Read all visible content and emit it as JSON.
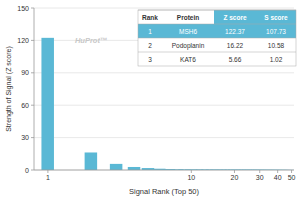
{
  "chart_data": {
    "type": "bar",
    "xlabel": "Signal Rank (Top 50)",
    "ylabel": "Strength of Signal (Z score)",
    "x": [
      1,
      2,
      3,
      4,
      5,
      6,
      7,
      8,
      9,
      10,
      11,
      12,
      13,
      14,
      15,
      16,
      17,
      18,
      19,
      20,
      21,
      22,
      23,
      24,
      25,
      26,
      27,
      28,
      29,
      30,
      31,
      32,
      33,
      34,
      35,
      36,
      37,
      38,
      39,
      40,
      41,
      42,
      43,
      44,
      45,
      46,
      47,
      48,
      49,
      50
    ],
    "values": [
      122.37,
      16.22,
      5.66,
      2.8,
      1.8,
      1.2,
      0.9,
      0.7,
      0.6,
      0.5,
      0.45,
      0.4,
      0.38,
      0.35,
      0.32,
      0.3,
      0.28,
      0.26,
      0.25,
      0.23,
      0.22,
      0.21,
      0.2,
      0.19,
      0.18,
      0.17,
      0.16,
      0.15,
      0.14,
      0.13,
      0.12,
      0.11,
      0.1,
      0.09,
      0.09,
      0.08,
      0.08,
      0.07,
      0.07,
      0.06,
      0.06,
      0.05,
      0.05,
      0.05,
      0.04,
      0.04,
      0.04,
      0.03,
      0.03,
      0.03
    ],
    "color": "#5ab8d5",
    "log": "x",
    "xlim": [
      0.8,
      52
    ],
    "xticks": [
      1,
      10,
      20,
      30,
      40,
      50
    ],
    "ylim": [
      0,
      150
    ],
    "yticks": [
      0,
      30,
      60,
      90,
      120,
      150
    ],
    "grid": true,
    "annotations": [
      "HuProt™"
    ],
    "table": {
      "headers": [
        "Rank",
        "Protein",
        "Z score",
        "S score"
      ],
      "rows": [
        [
          "1",
          "MSH6",
          "122.37",
          "107.73"
        ],
        [
          "2",
          "Podoplanin",
          "16.22",
          "10.58"
        ],
        [
          "3",
          "KAT6",
          "5.66",
          "1.02"
        ]
      ]
    }
  }
}
